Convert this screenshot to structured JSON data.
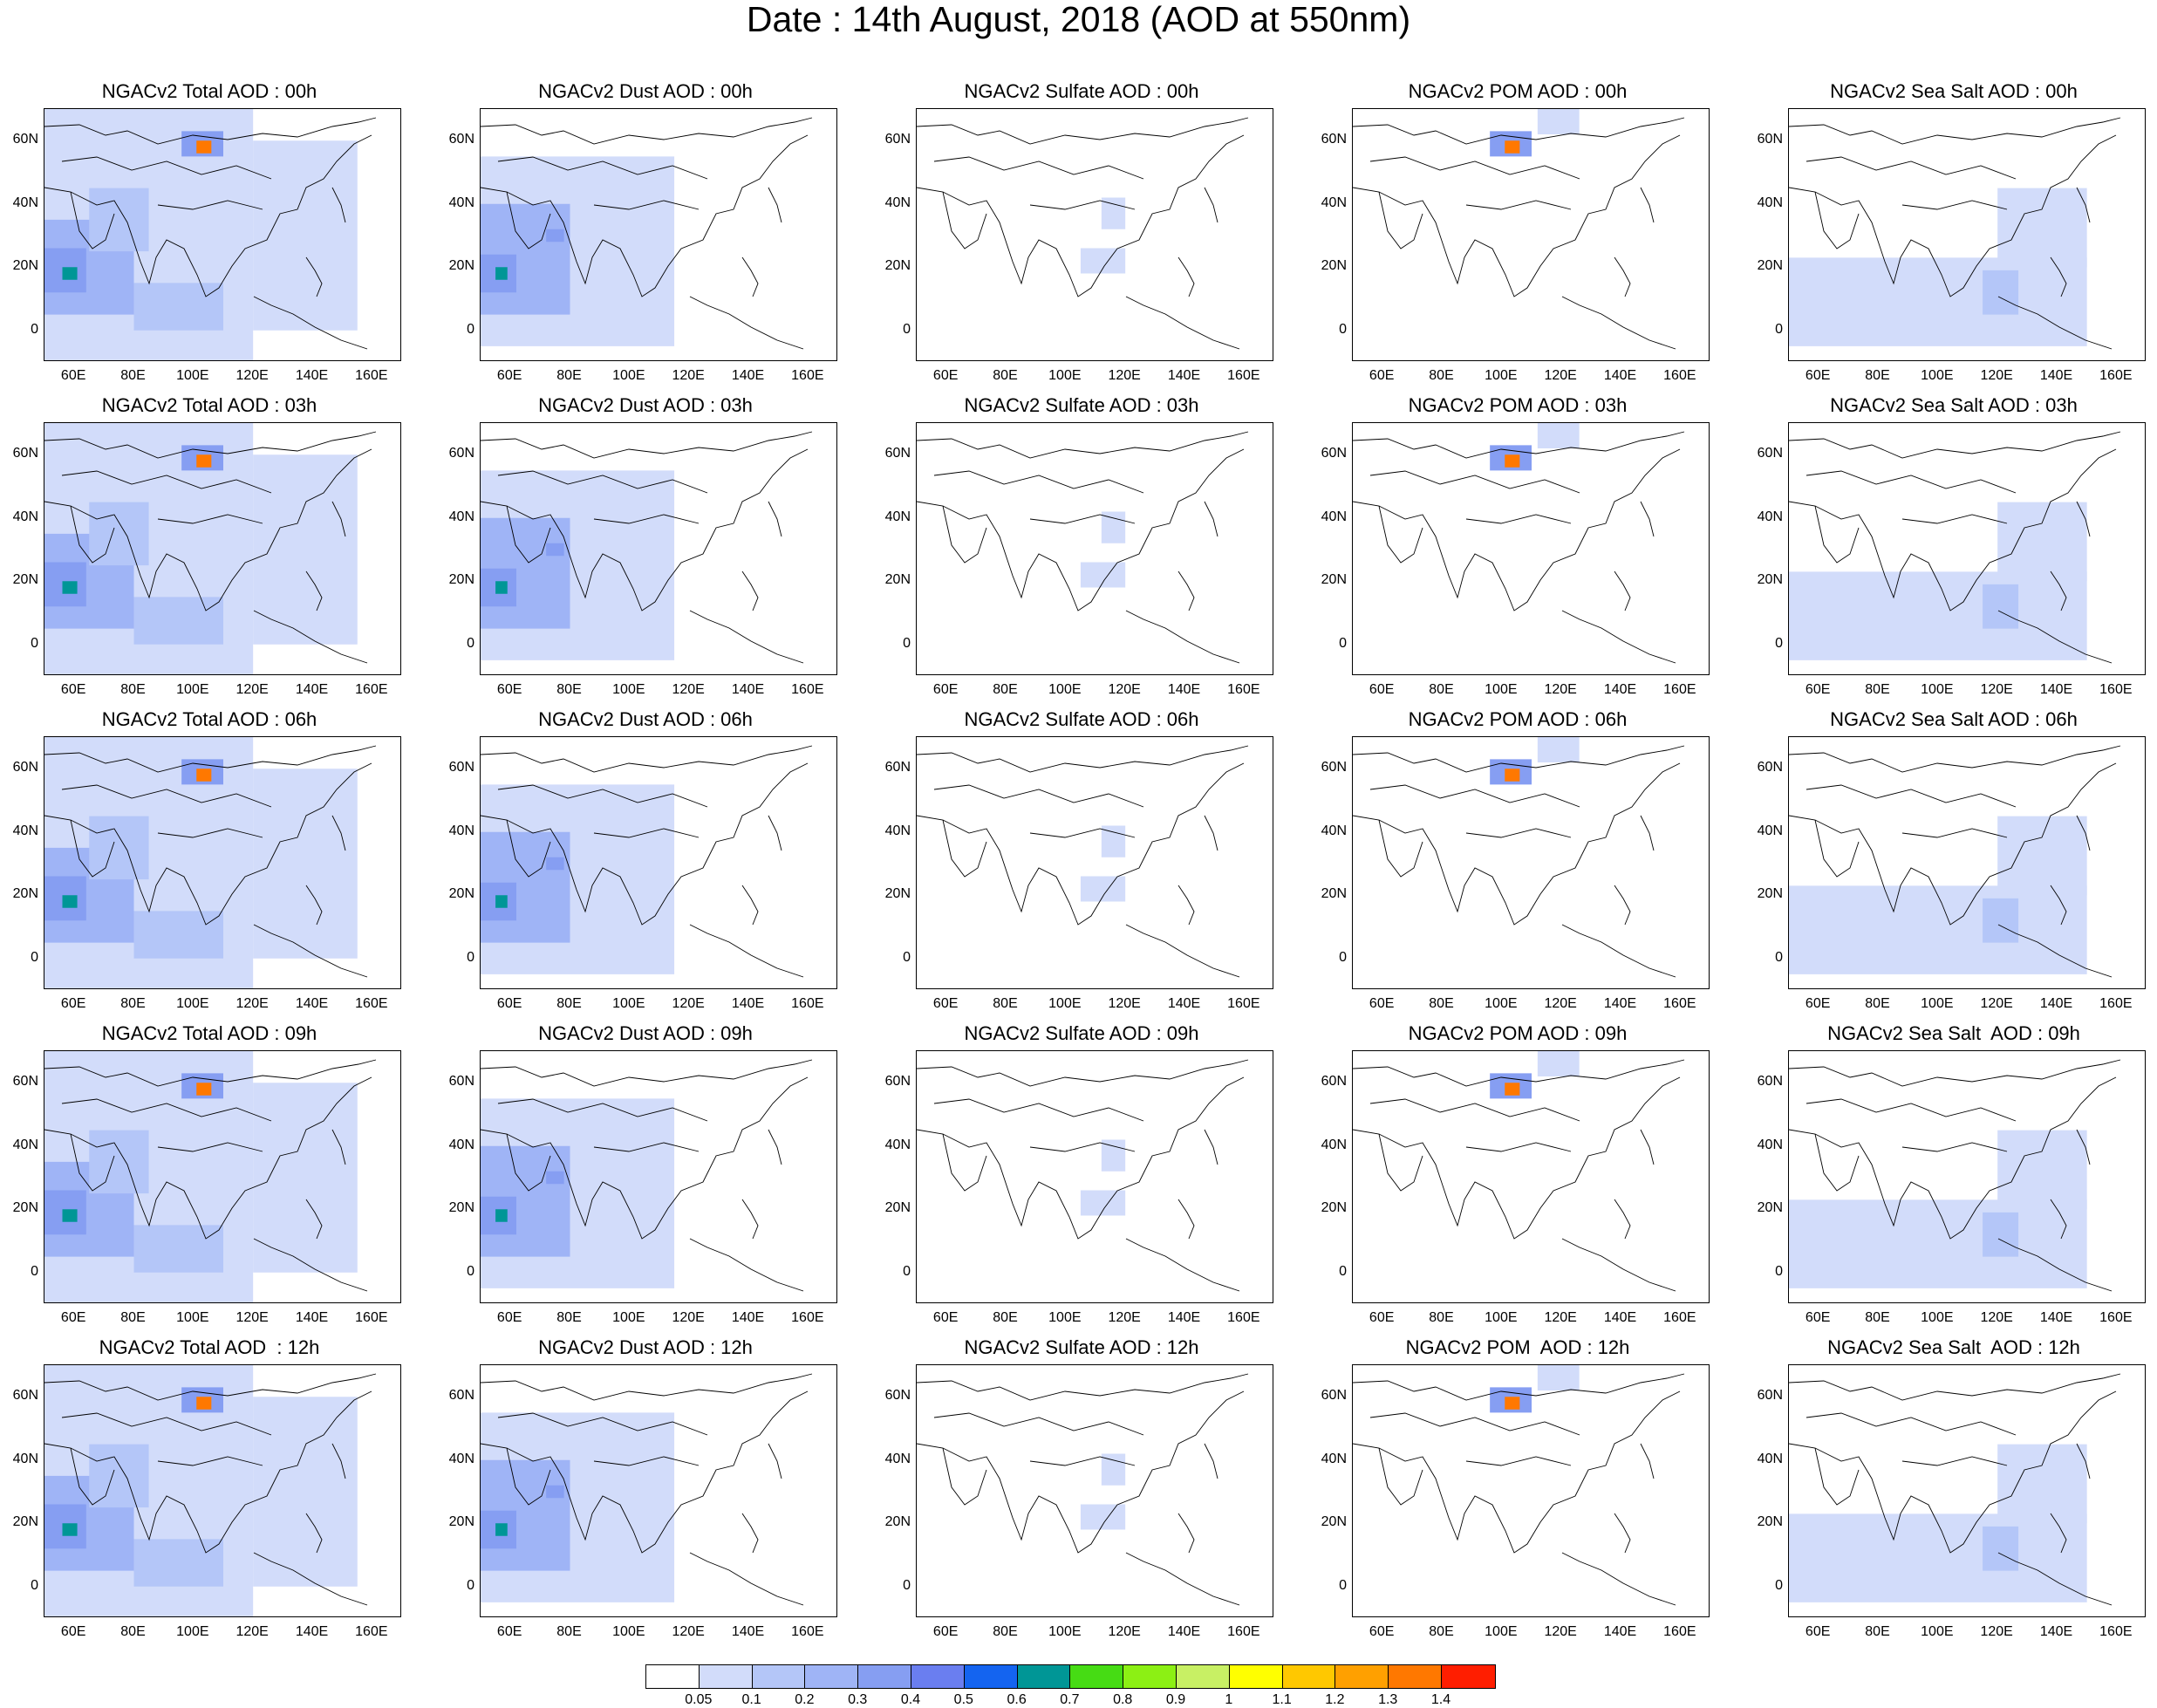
{
  "title": "Date : 14th August, 2018 (AOD at 550nm)",
  "x_ticks": [
    "60E",
    "80E",
    "100E",
    "120E",
    "140E",
    "160E"
  ],
  "y_ticks": [
    "60N",
    "40N",
    "20N",
    "0"
  ],
  "map_extent": {
    "lon": [
      50,
      170
    ],
    "lat": [
      -10,
      70
    ]
  },
  "columns": [
    "total",
    "dust",
    "sulfate",
    "pom",
    "seasalt"
  ],
  "panel_titles": [
    [
      "NGACv2 Total AOD : 00h",
      "NGACv2 Dust AOD : 00h",
      "NGACv2 Sulfate AOD : 00h",
      "NGACv2 POM AOD : 00h",
      "NGACv2 Sea Salt AOD : 00h"
    ],
    [
      "NGACv2 Total AOD : 03h",
      "NGACv2 Dust AOD : 03h",
      "NGACv2 Sulfate AOD : 03h",
      "NGACv2 POM AOD : 03h",
      "NGACv2 Sea Salt AOD : 03h"
    ],
    [
      "NGACv2 Total AOD : 06h",
      "NGACv2 Dust AOD : 06h",
      "NGACv2 Sulfate AOD : 06h",
      "NGACv2 POM AOD : 06h",
      "NGACv2 Sea Salt AOD : 06h"
    ],
    [
      "NGACv2 Total AOD : 09h",
      "NGACv2 Dust AOD : 09h",
      "NGACv2 Sulfate AOD : 09h",
      "NGACv2 POM AOD : 09h",
      "NGACv2 Sea Salt  AOD : 09h"
    ],
    [
      "NGACv2 Total AOD  : 12h",
      "NGACv2 Dust AOD : 12h",
      "NGACv2 Sulfate AOD : 12h",
      "NGACv2 POM  AOD : 12h",
      "NGACv2 Sea Salt  AOD : 12h"
    ]
  ],
  "colorbar": {
    "colors": [
      "#ffffff",
      "#d2dcfa",
      "#b4c6f8",
      "#9fb4f6",
      "#869ef2",
      "#6a7ef0",
      "#1464f0",
      "#009696",
      "#46dc14",
      "#8cf014",
      "#c8f064",
      "#ffff00",
      "#ffc800",
      "#ffa000",
      "#ff7800",
      "#ff1e00"
    ],
    "labels": [
      "0.05",
      "0.1",
      "0.2",
      "0.3",
      "0.4",
      "0.5",
      "0.6",
      "0.7",
      "0.8",
      "0.9",
      "1",
      "1.1",
      "1.2",
      "1.3",
      "1.4"
    ]
  },
  "aod_regions": {
    "total": [
      {
        "lon": 50,
        "lat": -10,
        "w": 70,
        "h": 80,
        "level": 1
      },
      {
        "lon": 120,
        "lat": 0,
        "w": 35,
        "h": 60,
        "level": 1
      },
      {
        "lon": 50,
        "lat": 5,
        "w": 30,
        "h": 30,
        "level": 3
      },
      {
        "lon": 50,
        "lat": 12,
        "w": 14,
        "h": 14,
        "level": 4
      },
      {
        "lon": 56,
        "lat": 16,
        "w": 5,
        "h": 4,
        "level": 7
      },
      {
        "lon": 65,
        "lat": 25,
        "w": 20,
        "h": 20,
        "level": 2
      },
      {
        "lon": 80,
        "lat": 0,
        "w": 30,
        "h": 15,
        "level": 2
      },
      {
        "lon": 96,
        "lat": 55,
        "w": 14,
        "h": 8,
        "level": 4
      },
      {
        "lon": 101,
        "lat": 56,
        "w": 5,
        "h": 4,
        "level": 14
      }
    ],
    "dust": [
      {
        "lon": 50,
        "lat": -5,
        "w": 65,
        "h": 60,
        "level": 1
      },
      {
        "lon": 50,
        "lat": 5,
        "w": 30,
        "h": 35,
        "level": 3
      },
      {
        "lon": 50,
        "lat": 12,
        "w": 12,
        "h": 12,
        "level": 4
      },
      {
        "lon": 55,
        "lat": 16,
        "w": 4,
        "h": 4,
        "level": 7
      },
      {
        "lon": 72,
        "lat": 28,
        "w": 6,
        "h": 4,
        "level": 4
      }
    ],
    "sulfate": [
      {
        "lon": 105,
        "lat": 18,
        "w": 15,
        "h": 8,
        "level": 1
      },
      {
        "lon": 112,
        "lat": 32,
        "w": 8,
        "h": 10,
        "level": 1
      }
    ],
    "pom": [
      {
        "lon": 96,
        "lat": 55,
        "w": 14,
        "h": 8,
        "level": 4
      },
      {
        "lon": 101,
        "lat": 56,
        "w": 5,
        "h": 4,
        "level": 14
      },
      {
        "lon": 112,
        "lat": 62,
        "w": 14,
        "h": 8,
        "level": 1
      }
    ],
    "seasalt": [
      {
        "lon": 50,
        "lat": -5,
        "w": 100,
        "h": 28,
        "level": 1
      },
      {
        "lon": 120,
        "lat": 20,
        "w": 30,
        "h": 25,
        "level": 1
      },
      {
        "lon": 115,
        "lat": 5,
        "w": 12,
        "h": 14,
        "level": 2
      }
    ]
  }
}
